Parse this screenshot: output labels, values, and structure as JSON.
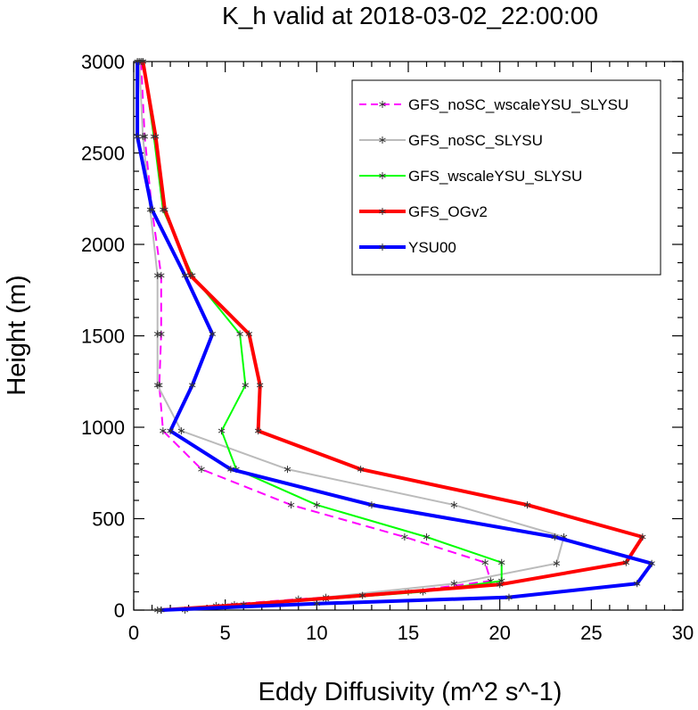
{
  "chart_data": {
    "type": "line",
    "title": "K_h valid at 2018-03-02_22:00:00",
    "xlabel": "Eddy Diffusivity (m^2 s^-1)",
    "ylabel": "Height (m)",
    "xlim": [
      0,
      30
    ],
    "ylim": [
      0,
      3000
    ],
    "xticks": [
      "0",
      "5",
      "10",
      "15",
      "20",
      "25",
      "30"
    ],
    "yticks": [
      "0",
      "500",
      "1000",
      "1500",
      "2000",
      "2500",
      "3000"
    ],
    "legend_position": "top-right",
    "grid": false,
    "series": [
      {
        "name": "GFS_noSC_wscaleYSU_SLYSU",
        "color": "#ff00ff",
        "style": "dashed",
        "marker": "asterisk",
        "points": [
          [
            2.8,
            0
          ],
          [
            4.5,
            25
          ],
          [
            9.0,
            60
          ],
          [
            15.0,
            100
          ],
          [
            19.5,
            160
          ],
          [
            19.2,
            260
          ],
          [
            14.8,
            400
          ],
          [
            8.6,
            575
          ],
          [
            3.7,
            770
          ],
          [
            1.6,
            980
          ],
          [
            1.4,
            1230
          ],
          [
            1.5,
            1510
          ],
          [
            1.5,
            1830
          ],
          [
            1.0,
            2190
          ],
          [
            0.6,
            2590
          ],
          [
            0.4,
            3000
          ]
        ]
      },
      {
        "name": "GFS_noSC_SLYSU",
        "color": "#bbbbbb",
        "style": "solid",
        "marker": "asterisk",
        "points": [
          [
            1.3,
            0
          ],
          [
            5.5,
            30
          ],
          [
            10.5,
            70
          ],
          [
            17.5,
            145
          ],
          [
            23.1,
            255
          ],
          [
            23.5,
            400
          ],
          [
            17.5,
            575
          ],
          [
            8.4,
            770
          ],
          [
            2.6,
            980
          ],
          [
            1.3,
            1230
          ],
          [
            1.3,
            1510
          ],
          [
            1.3,
            1830
          ],
          [
            0.9,
            2190
          ],
          [
            0.5,
            2590
          ],
          [
            0.3,
            3000
          ]
        ]
      },
      {
        "name": "GFS_wscaleYSU_SLYSU",
        "color": "#00ff00",
        "style": "solid",
        "marker": "asterisk",
        "points": [
          [
            1.5,
            0
          ],
          [
            5.0,
            25
          ],
          [
            10.5,
            60
          ],
          [
            15.8,
            100
          ],
          [
            20.1,
            160
          ],
          [
            20.1,
            260
          ],
          [
            16.0,
            400
          ],
          [
            10.0,
            575
          ],
          [
            5.6,
            770
          ],
          [
            4.8,
            980
          ],
          [
            6.1,
            1230
          ],
          [
            5.8,
            1510
          ],
          [
            3.2,
            1830
          ],
          [
            1.6,
            2190
          ],
          [
            1.1,
            2590
          ],
          [
            0.5,
            3000
          ]
        ]
      },
      {
        "name": "GFS_OGv2",
        "color": "#ff0000",
        "style": "solid",
        "marker": "asterisk",
        "points": [
          [
            1.5,
            0
          ],
          [
            6.0,
            30
          ],
          [
            12.5,
            80
          ],
          [
            20.0,
            140
          ],
          [
            26.9,
            260
          ],
          [
            27.8,
            400
          ],
          [
            21.5,
            575
          ],
          [
            12.4,
            770
          ],
          [
            6.8,
            980
          ],
          [
            6.9,
            1230
          ],
          [
            6.3,
            1510
          ],
          [
            3.1,
            1830
          ],
          [
            1.7,
            2190
          ],
          [
            1.2,
            2590
          ],
          [
            0.5,
            3000
          ]
        ]
      },
      {
        "name": "YSU00",
        "color": "#0000ff",
        "style": "solid",
        "marker": "asterisk",
        "points": [
          [
            1.5,
            0
          ],
          [
            10.0,
            35
          ],
          [
            20.5,
            70
          ],
          [
            27.5,
            145
          ],
          [
            28.3,
            255
          ],
          [
            23.0,
            400
          ],
          [
            13.0,
            575
          ],
          [
            5.3,
            770
          ],
          [
            2.0,
            980
          ],
          [
            3.2,
            1230
          ],
          [
            4.3,
            1510
          ],
          [
            2.8,
            1830
          ],
          [
            1.0,
            2190
          ],
          [
            0.2,
            2590
          ],
          [
            0.2,
            3000
          ]
        ]
      }
    ]
  }
}
